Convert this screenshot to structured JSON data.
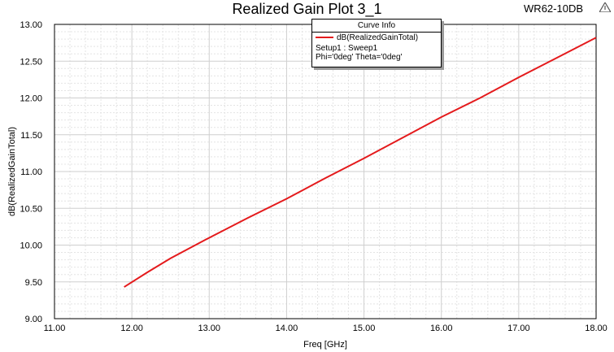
{
  "header": {
    "title": "Realized Gain Plot 3_1",
    "project": "WR62-10DB"
  },
  "legend": {
    "header": "Curve Info",
    "curve_name": "dB(RealizedGainTotal)",
    "setup": "Setup1 : Sweep1",
    "variables": "Phi='0deg' Theta='0deg'"
  },
  "colors": {
    "curve": "#e41a1c",
    "grid": "#cfcfcf",
    "axis": "#000000"
  },
  "chart_data": {
    "type": "line",
    "title": "Realized Gain Plot 3_1",
    "xlabel": "Freq [GHz]",
    "ylabel": "dB(RealizedGainTotal)",
    "xlim": [
      11.0,
      18.0
    ],
    "ylim": [
      9.0,
      13.0
    ],
    "x_ticks": [
      "11.00",
      "12.00",
      "13.00",
      "14.00",
      "15.00",
      "16.00",
      "17.00",
      "18.00"
    ],
    "y_ticks": [
      "9.00",
      "9.50",
      "10.00",
      "10.50",
      "11.00",
      "11.50",
      "12.00",
      "12.50",
      "13.00"
    ],
    "grid": true,
    "legend_position": "top-center",
    "series": [
      {
        "name": "dB(RealizedGainTotal)",
        "x": [
          11.9,
          12.2,
          12.5,
          13.0,
          13.5,
          14.0,
          14.5,
          15.0,
          15.5,
          16.0,
          16.5,
          17.0,
          17.5,
          18.0
        ],
        "y": [
          9.43,
          9.63,
          9.82,
          10.1,
          10.37,
          10.63,
          10.91,
          11.18,
          11.46,
          11.74,
          12.0,
          12.28,
          12.55,
          12.82
        ]
      }
    ]
  }
}
